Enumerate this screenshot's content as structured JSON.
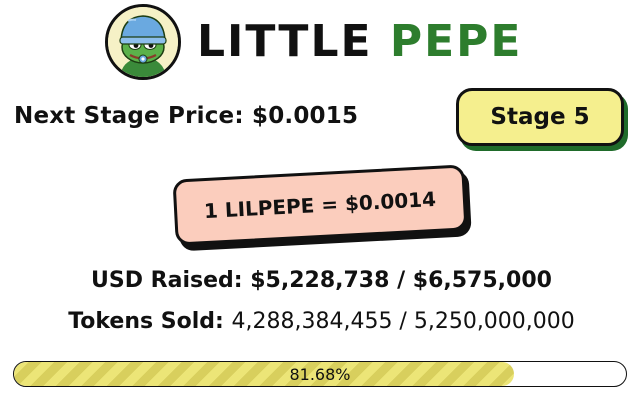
{
  "brand": {
    "word1": "LITTLE",
    "word2": "PEPE",
    "logo_icon": "pepe-frog-beanie-logo",
    "accent_color": "#2d7d2d"
  },
  "stage": {
    "next_price_label": "Next Stage Price:",
    "next_price_value": "$0.0015",
    "stage_label": "Stage 5",
    "stage_button_color": "#f5ef8e"
  },
  "price": {
    "text": "1 LILPEPE = $0.0014",
    "badge_color": "#fbcdbd"
  },
  "stats": {
    "usd_raised_label": "USD Raised:",
    "usd_raised_value": "$5,228,738 / $6,575,000",
    "tokens_sold_label": "Tokens Sold:",
    "tokens_sold_value": "4,288,384,455 / 5,250,000,000"
  },
  "progress": {
    "percent": 81.68,
    "label": "81.68%",
    "fill_color": "#ece577"
  }
}
